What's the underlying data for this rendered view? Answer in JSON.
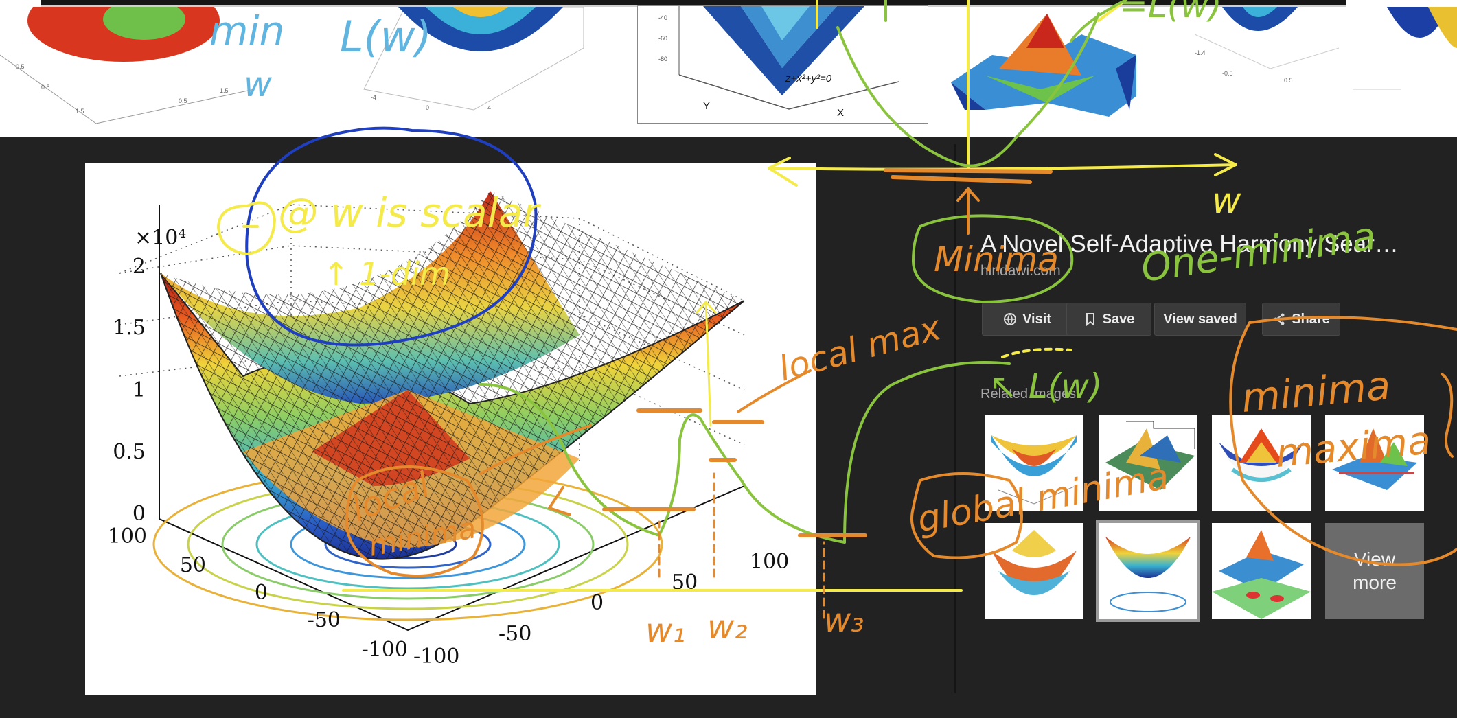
{
  "panel": {
    "title": "A Novel Self-Adaptive Harmony Sear…",
    "source": "hindawi.com",
    "buttons": {
      "visit": "Visit",
      "save": "Save",
      "view_saved": "View saved",
      "share": "Share"
    },
    "related_label": "Related images",
    "view_more_line1": "View",
    "view_more_line2": "more"
  },
  "main_plot": {
    "scale_label": "×10⁴",
    "z_ticks": [
      "2",
      "1.5",
      "1",
      "0.5",
      "0"
    ],
    "left_ticks": [
      "100",
      "50",
      "0",
      "-50",
      "-100"
    ],
    "right_ticks": [
      "-100",
      "-50",
      "0",
      "50",
      "100"
    ]
  },
  "top_thumbs": {
    "equation": "z+x²+y²=0",
    "y_axis": "Y",
    "x_axis": "X"
  },
  "annotations": {
    "min_text": "min",
    "w_below_min": "w",
    "loss_top": "L(w)",
    "loss_top_right": "=L(w)",
    "w_scalar": "@ w is scalar",
    "one_dim": "↑ 1-dim",
    "axis_w": "w",
    "minima_circle": "Minima",
    "one_minima": "One-minima",
    "local_max": "local max",
    "loss_mid": "↖ L(w)",
    "minima_maxima_1": "minima",
    "minima_maxima_2": "maxima",
    "global_minima": "global minima",
    "local_minima_1": "local",
    "local_minima_2": "minima",
    "w1": "w₁",
    "w2": "w₂",
    "w3": "w₃"
  },
  "colors": {
    "background": "#222222",
    "ink_yellow": "#f4ea4a",
    "ink_green": "#8ac43f",
    "ink_orange": "#e58a2c",
    "ink_blue": "#1f3fbf",
    "ink_light_blue": "#5fb4e0"
  }
}
